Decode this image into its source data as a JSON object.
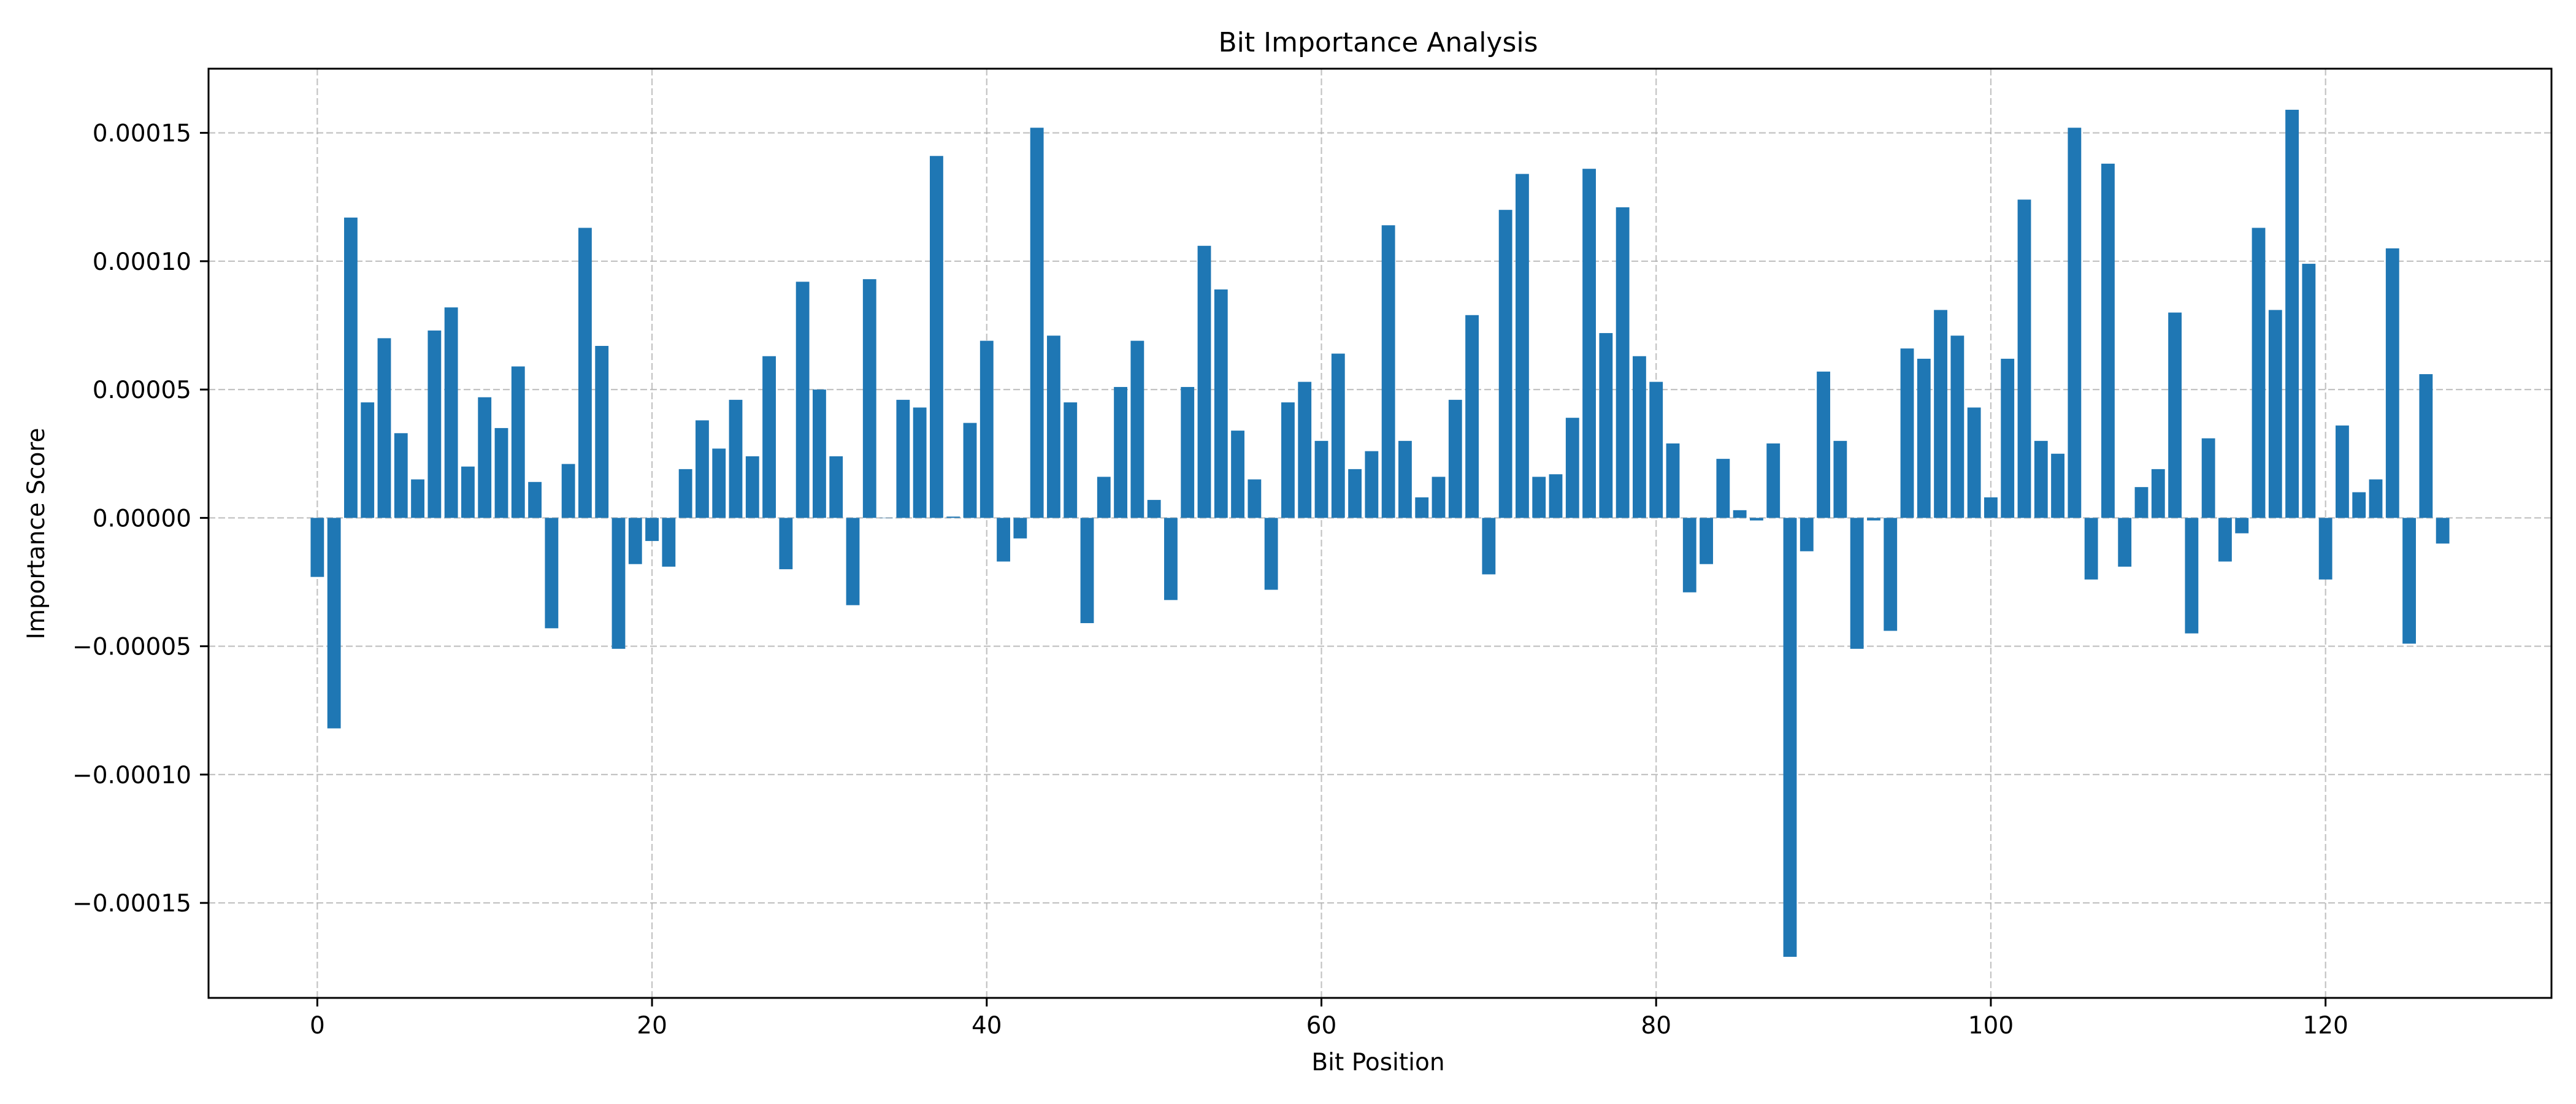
{
  "chart_data": {
    "type": "bar",
    "title": "Bit Importance Analysis",
    "xlabel": "Bit Position",
    "ylabel": "Importance Score",
    "xlim": [
      -6.5,
      133.5
    ],
    "ylim": [
      -0.000187,
      0.000175
    ],
    "x_ticks": [
      0,
      20,
      40,
      60,
      80,
      100,
      120
    ],
    "y_ticks": [
      -0.00015,
      -0.0001,
      -5e-05,
      0.0,
      5e-05,
      0.0001,
      0.00015
    ],
    "x_tick_labels": [
      "0",
      "20",
      "40",
      "60",
      "80",
      "100",
      "120"
    ],
    "y_tick_labels": [
      "−0.00015",
      "−0.00010",
      "−0.00005",
      "0.00000",
      "0.00005",
      "0.00010",
      "0.00015"
    ],
    "grid": true,
    "bar_color": "#1f77b4",
    "x": [
      0,
      1,
      2,
      3,
      4,
      5,
      6,
      7,
      8,
      9,
      10,
      11,
      12,
      13,
      14,
      15,
      16,
      17,
      18,
      19,
      20,
      21,
      22,
      23,
      24,
      25,
      26,
      27,
      28,
      29,
      30,
      31,
      32,
      33,
      34,
      35,
      36,
      37,
      38,
      39,
      40,
      41,
      42,
      43,
      44,
      45,
      46,
      47,
      48,
      49,
      50,
      51,
      52,
      53,
      54,
      55,
      56,
      57,
      58,
      59,
      60,
      61,
      62,
      63,
      64,
      65,
      66,
      67,
      68,
      69,
      70,
      71,
      72,
      73,
      74,
      75,
      76,
      77,
      78,
      79,
      80,
      81,
      82,
      83,
      84,
      85,
      86,
      87,
      88,
      89,
      90,
      91,
      92,
      93,
      94,
      95,
      96,
      97,
      98,
      99,
      100,
      101,
      102,
      103,
      104,
      105,
      106,
      107,
      108,
      109,
      110,
      111,
      112,
      113,
      114,
      115,
      116,
      117,
      118,
      119,
      120,
      121,
      122,
      123,
      124,
      125,
      126,
      127
    ],
    "values": [
      -2.3e-05,
      -8.2e-05,
      0.000117,
      4.5e-05,
      7e-05,
      3.3e-05,
      1.5e-05,
      7.3e-05,
      8.2e-05,
      2e-05,
      4.7e-05,
      3.5e-05,
      5.9e-05,
      1.4e-05,
      -4.3e-05,
      2.1e-05,
      0.000113,
      6.7e-05,
      -5.1e-05,
      -1.8e-05,
      -9e-06,
      -1.9e-05,
      1.9e-05,
      3.8e-05,
      2.7e-05,
      4.6e-05,
      2.4e-05,
      6.3e-05,
      -2e-05,
      9.2e-05,
      5e-05,
      2.4e-05,
      -3.4e-05,
      9.3e-05,
      0.0,
      4.6e-05,
      4.3e-05,
      0.000141,
      5e-07,
      3.7e-05,
      6.9e-05,
      -1.7e-05,
      -8e-06,
      0.000152,
      7.1e-05,
      4.5e-05,
      -4.1e-05,
      1.6e-05,
      5.1e-05,
      6.9e-05,
      7e-06,
      -3.2e-05,
      5.1e-05,
      0.000106,
      8.9e-05,
      3.4e-05,
      1.5e-05,
      -2.8e-05,
      4.5e-05,
      5.3e-05,
      3e-05,
      6.4e-05,
      1.9e-05,
      2.6e-05,
      0.000114,
      3e-05,
      8e-06,
      1.6e-05,
      4.6e-05,
      7.9e-05,
      -2.2e-05,
      0.00012,
      0.000134,
      1.6e-05,
      1.7e-05,
      3.9e-05,
      0.000136,
      7.2e-05,
      0.000121,
      6.3e-05,
      5.3e-05,
      2.9e-05,
      -2.9e-05,
      -1.8e-05,
      2.3e-05,
      3e-06,
      -1e-06,
      2.9e-05,
      -0.000171,
      -1.3e-05,
      5.7e-05,
      3e-05,
      -5.1e-05,
      -1e-06,
      -4.4e-05,
      6.6e-05,
      6.2e-05,
      8.1e-05,
      7.1e-05,
      4.3e-05,
      8e-06,
      6.2e-05,
      0.000124,
      3e-05,
      2.5e-05,
      0.000152,
      -2.4e-05,
      0.000138,
      -1.9e-05,
      1.2e-05,
      1.9e-05,
      8e-05,
      -4.5e-05,
      3.1e-05,
      -1.7e-05,
      -6e-06,
      0.000113,
      8.1e-05,
      0.000159,
      9.9e-05,
      -2.4e-05,
      3.6e-05,
      1e-05,
      1.5e-05,
      0.000105,
      -4.9e-05,
      5.6e-05,
      -1e-05
    ]
  }
}
